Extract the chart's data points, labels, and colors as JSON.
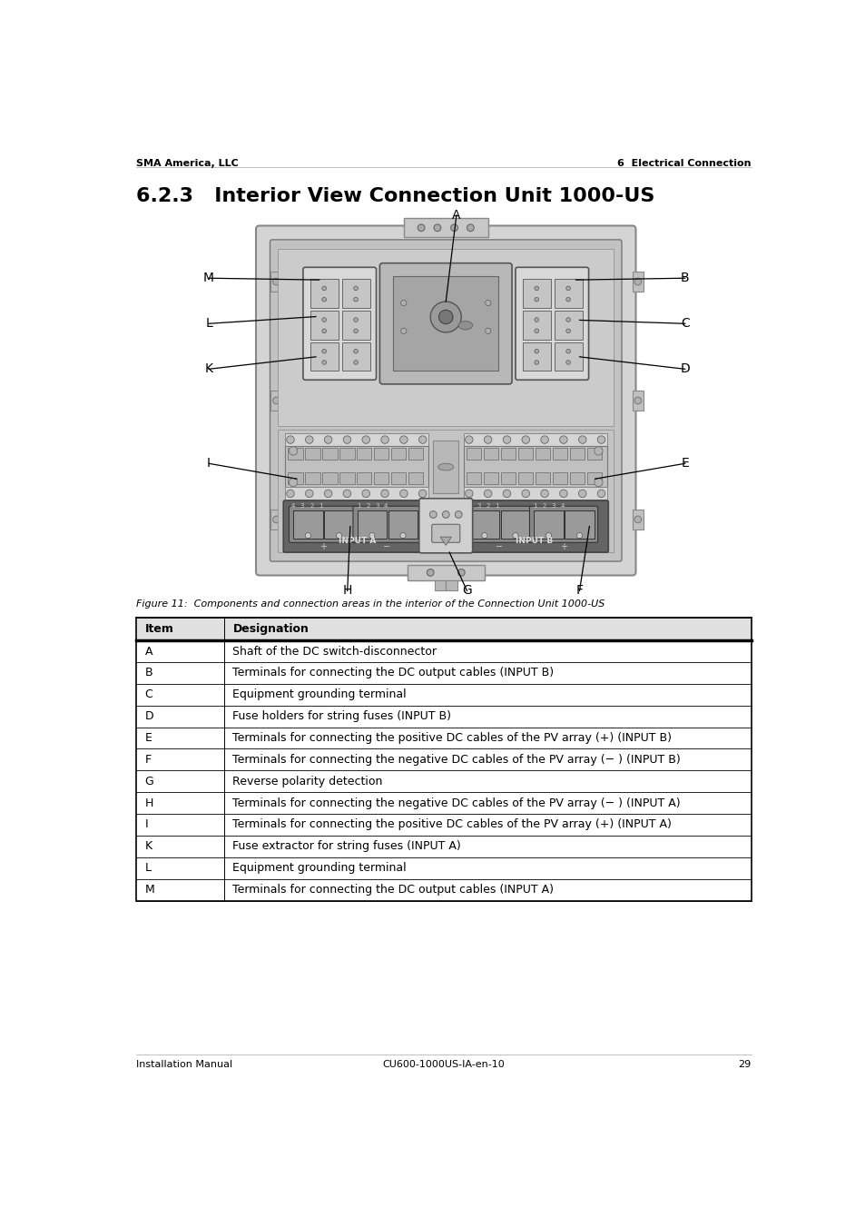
{
  "page_title": "6.2.3   Interior View Connection Unit 1000-US",
  "header_left": "SMA America, LLC",
  "header_right": "6  Electrical Connection",
  "footer_left": "Installation Manual",
  "footer_right": "CU600-1000US-IA-en-10",
  "footer_page": "29",
  "figure_caption": "Figure 11:  Components and connection areas in the interior of the Connection Unit 1000-US",
  "table_headers": [
    "Item",
    "Designation"
  ],
  "table_rows": [
    [
      "A",
      "Shaft of the DC switch-disconnector"
    ],
    [
      "B",
      "Terminals for connecting the DC output cables (INPUT B)"
    ],
    [
      "C",
      "Equipment grounding terminal"
    ],
    [
      "D",
      "Fuse holders for string fuses (INPUT B)"
    ],
    [
      "E",
      "Terminals for connecting the positive DC cables of the PV array (+) (INPUT B)"
    ],
    [
      "F",
      "Terminals for connecting the negative DC cables of the PV array (− ) (INPUT B)"
    ],
    [
      "G",
      "Reverse polarity detection"
    ],
    [
      "H",
      "Terminals for connecting the negative DC cables of the PV array (− ) (INPUT A)"
    ],
    [
      "I",
      "Terminals for connecting the positive DC cables of the PV array (+) (INPUT A)"
    ],
    [
      "K",
      "Fuse extractor for string fuses (INPUT A)"
    ],
    [
      "L",
      "Equipment grounding terminal"
    ],
    [
      "M",
      "Terminals for connecting the DC output cables (INPUT A)"
    ]
  ],
  "bg_color": "#ffffff",
  "table_header_bg": "#e0e0e0",
  "header_font_size": 8,
  "title_font_size": 16,
  "table_font_size": 9,
  "caption_font_size": 8,
  "footer_font_size": 8
}
